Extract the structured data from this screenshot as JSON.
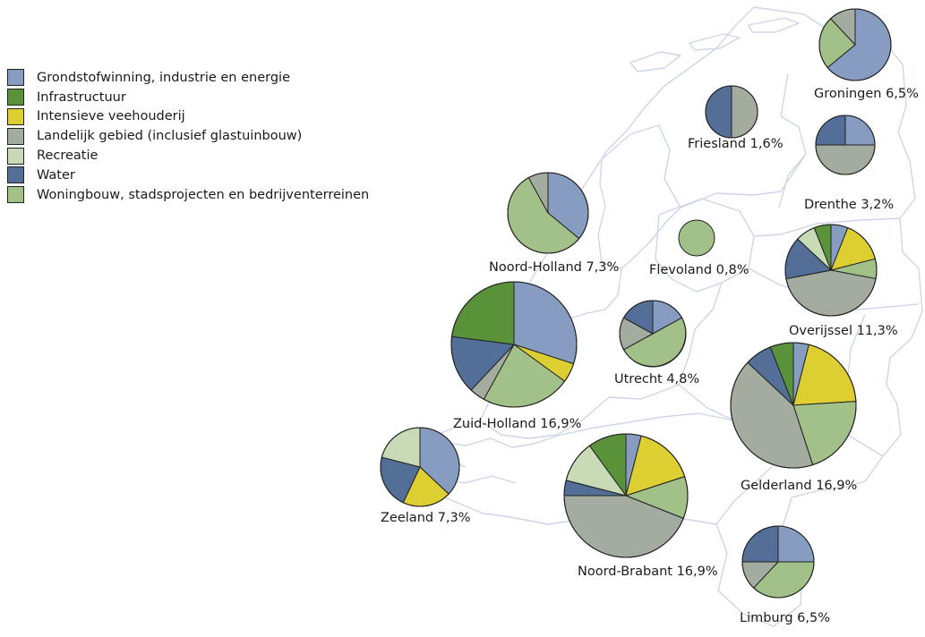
{
  "legend": [
    {
      "key": "grondstof",
      "label": "Grondstofwinning, industrie en energie",
      "color": "#869dc1"
    },
    {
      "key": "infra",
      "label": "Infrastructuur",
      "color": "#5a923a"
    },
    {
      "key": "vee",
      "label": "Intensieve veehouderij",
      "color": "#ddcf32"
    },
    {
      "key": "landelijk",
      "label": "Landelijk gebied (inclusief glastuinbouw)",
      "color": "#a4ab9f"
    },
    {
      "key": "recreatie",
      "label": "Recreatie",
      "color": "#c8dbb6"
    },
    {
      "key": "water",
      "label": "Water",
      "color": "#536f98"
    },
    {
      "key": "woning",
      "label": "Woningbouw, stadsprojecten en bedrijventerreinen",
      "color": "#a2c188"
    }
  ],
  "chart_data": {
    "type": "pie",
    "provinces": [
      {
        "name": "Groningen",
        "share": "6,5%",
        "label": "Groningen 6,5%",
        "slices": [
          {
            "cat": "grondstof",
            "pct": 64
          },
          {
            "cat": "woning",
            "pct": 24
          },
          {
            "cat": "landelijk",
            "pct": 12
          }
        ]
      },
      {
        "name": "Friesland",
        "share": "1,6%",
        "label": "Friesland 1,6%",
        "slices": [
          {
            "cat": "landelijk",
            "pct": 50
          },
          {
            "cat": "water",
            "pct": 50
          }
        ]
      },
      {
        "name": "Drenthe",
        "share": "3,2%",
        "label": "Drenthe 3,2%",
        "slices": [
          {
            "cat": "grondstof",
            "pct": 25
          },
          {
            "cat": "landelijk",
            "pct": 50
          },
          {
            "cat": "water",
            "pct": 25
          }
        ]
      },
      {
        "name": "Noord-Holland",
        "share": "7,3%",
        "label": "Noord-Holland 7,3%",
        "slices": [
          {
            "cat": "grondstof",
            "pct": 36
          },
          {
            "cat": "woning",
            "pct": 56
          },
          {
            "cat": "landelijk",
            "pct": 8
          }
        ]
      },
      {
        "name": "Flevoland",
        "share": "0,8%",
        "label": "Flevoland 0,8%",
        "slices": [
          {
            "cat": "woning",
            "pct": 100
          }
        ]
      },
      {
        "name": "Overijssel",
        "share": "11,3%",
        "label": "Overijssel 11,3%",
        "slices": [
          {
            "cat": "grondstof",
            "pct": 6
          },
          {
            "cat": "vee",
            "pct": 15
          },
          {
            "cat": "woning",
            "pct": 7
          },
          {
            "cat": "landelijk",
            "pct": 44
          },
          {
            "cat": "water",
            "pct": 15
          },
          {
            "cat": "recreatie",
            "pct": 7
          },
          {
            "cat": "infra",
            "pct": 6
          }
        ]
      },
      {
        "name": "Utrecht",
        "share": "4,8%",
        "label": "Utrecht 4,8%",
        "slices": [
          {
            "cat": "grondstof",
            "pct": 17
          },
          {
            "cat": "woning",
            "pct": 50
          },
          {
            "cat": "landelijk",
            "pct": 16
          },
          {
            "cat": "water",
            "pct": 17
          }
        ]
      },
      {
        "name": "Zuid-Holland",
        "share": "16,9%",
        "label": "Zuid-Holland 16,9%",
        "slices": [
          {
            "cat": "grondstof",
            "pct": 30
          },
          {
            "cat": "vee",
            "pct": 5
          },
          {
            "cat": "woning",
            "pct": 23
          },
          {
            "cat": "landelijk",
            "pct": 4
          },
          {
            "cat": "water",
            "pct": 15
          },
          {
            "cat": "infra",
            "pct": 23
          }
        ]
      },
      {
        "name": "Gelderland",
        "share": "16,9%",
        "label": "Gelderland 16,9%",
        "slices": [
          {
            "cat": "grondstof",
            "pct": 4
          },
          {
            "cat": "vee",
            "pct": 20
          },
          {
            "cat": "woning",
            "pct": 21
          },
          {
            "cat": "landelijk",
            "pct": 42
          },
          {
            "cat": "water",
            "pct": 7
          },
          {
            "cat": "infra",
            "pct": 6
          }
        ]
      },
      {
        "name": "Zeeland",
        "share": "7,3%",
        "label": "Zeeland 7,3%",
        "slices": [
          {
            "cat": "grondstof",
            "pct": 37
          },
          {
            "cat": "vee",
            "pct": 20
          },
          {
            "cat": "water",
            "pct": 22
          },
          {
            "cat": "recreatie",
            "pct": 21
          }
        ]
      },
      {
        "name": "Noord-Brabant",
        "share": "16,9%",
        "label": "Noord-Brabant 16,9%",
        "slices": [
          {
            "cat": "grondstof",
            "pct": 4
          },
          {
            "cat": "vee",
            "pct": 16
          },
          {
            "cat": "woning",
            "pct": 11
          },
          {
            "cat": "landelijk",
            "pct": 44
          },
          {
            "cat": "water",
            "pct": 4
          },
          {
            "cat": "recreatie",
            "pct": 11
          },
          {
            "cat": "infra",
            "pct": 10
          }
        ]
      },
      {
        "name": "Limburg",
        "share": "6,5%",
        "label": "Limburg 6,5%",
        "slices": [
          {
            "cat": "grondstof",
            "pct": 25
          },
          {
            "cat": "woning",
            "pct": 37
          },
          {
            "cat": "landelijk",
            "pct": 13
          },
          {
            "cat": "water",
            "pct": 25
          }
        ]
      }
    ]
  }
}
